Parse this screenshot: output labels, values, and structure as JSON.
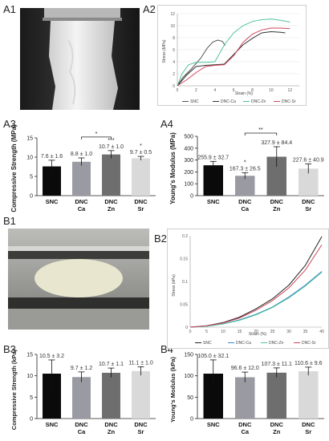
{
  "labels": {
    "a1": "A1",
    "a2": "A2",
    "a3": "A3",
    "a4": "A4",
    "b1": "B1",
    "b2": "B2",
    "b3": "B3",
    "b4": "B4"
  },
  "chart_data": [
    {
      "id": "A2",
      "type": "line",
      "xlabel": "Strain (%)",
      "ylabel": "Stress (MPa)",
      "xlim": [
        0,
        13
      ],
      "ylim": [
        0,
        12
      ],
      "xticks": [
        "0",
        "2",
        "4",
        "6",
        "8",
        "10",
        "12"
      ],
      "yticks": [
        "0",
        "2",
        "4",
        "6",
        "8",
        "10",
        "12"
      ],
      "grid": true,
      "legend": "bottom",
      "series": [
        {
          "name": "SNC",
          "color": "#555555",
          "x": [
            0,
            0.6,
            1.5,
            2.5,
            3.2,
            3.8,
            4.3,
            4.8,
            5.1
          ],
          "y": [
            0,
            1.4,
            2.8,
            4.6,
            6.3,
            7.3,
            7.6,
            7.4,
            6.7
          ]
        },
        {
          "name": "DNC-Ca",
          "color": "#333333",
          "x": [
            0,
            1,
            2,
            3,
            4,
            5,
            6,
            7,
            8,
            9,
            10,
            11,
            11.5
          ],
          "y": [
            0,
            1.8,
            3.2,
            3.4,
            3.5,
            3.6,
            5.2,
            6.8,
            7.9,
            8.8,
            9.0,
            8.9,
            8.8
          ]
        },
        {
          "name": "DNC-Zn",
          "color": "#4fc49b",
          "x": [
            0,
            0.5,
            1.2,
            2,
            3,
            4,
            5,
            6,
            7,
            8,
            9,
            10,
            11,
            12
          ],
          "y": [
            0,
            2,
            3.5,
            3.9,
            3.9,
            4,
            6.8,
            8.8,
            10,
            10.7,
            11,
            11.1,
            10.9,
            10.6
          ]
        },
        {
          "name": "DNC-Sr",
          "color": "#d0455c",
          "x": [
            0,
            1,
            2,
            3,
            4,
            5,
            6,
            7,
            8,
            9,
            10,
            11,
            12
          ],
          "y": [
            0,
            1,
            2.2,
            3.2,
            3.4,
            3.5,
            5,
            7.2,
            8.6,
            9.3,
            9.6,
            9.6,
            9.5
          ]
        }
      ]
    },
    {
      "id": "A3",
      "type": "bar",
      "ylabel": "Compressive Strength (MPa)",
      "ylim": [
        0,
        15
      ],
      "yticks": [
        "0",
        "5",
        "10",
        "15"
      ],
      "categories": [
        [
          "SNC"
        ],
        [
          "DNC",
          "Ca"
        ],
        [
          "DNC",
          "Zn"
        ],
        [
          "DNC",
          "Sr"
        ]
      ],
      "values": [
        7.6,
        8.8,
        10.7,
        9.7
      ],
      "errors": [
        1.6,
        1.0,
        1.0,
        0.5
      ],
      "value_labels": [
        "7.6 ± 1.6",
        "8.8 ± 1.0",
        "10.7 ± 1.0",
        "9.7 ± 0.5"
      ],
      "bar_colors": [
        "#0a0a0a",
        "#9a9aa3",
        "#6e6e6e",
        "#d9d9d9"
      ],
      "stars": [
        {
          "bar": 2,
          "text": "***"
        },
        {
          "bar": 3,
          "text": "*"
        }
      ],
      "brackets": [
        {
          "from": 1,
          "to": 2,
          "text": "*"
        }
      ]
    },
    {
      "id": "A4",
      "type": "bar",
      "ylabel": "Young's Modulus (MPa)",
      "ylim": [
        0,
        500
      ],
      "yticks": [
        "0",
        "100",
        "200",
        "300",
        "400",
        "500"
      ],
      "categories": [
        [
          "SNC"
        ],
        [
          "DNC",
          "Ca"
        ],
        [
          "DNC",
          "Zn"
        ],
        [
          "DNC",
          "Sr"
        ]
      ],
      "values": [
        255.9,
        167.3,
        327.9,
        227.6
      ],
      "errors": [
        32.7,
        26.5,
        84.4,
        40.9
      ],
      "value_labels": [
        "255.9 ± 32.7",
        "167.3 ± 26.5",
        "327.9 ± 84.4",
        "227.6 ± 40.9"
      ],
      "bar_colors": [
        "#0a0a0a",
        "#9a9aa3",
        "#6e6e6e",
        "#d9d9d9"
      ],
      "stars": [
        {
          "bar": 1,
          "text": "*"
        }
      ],
      "brackets": [
        {
          "from": 1,
          "to": 2,
          "text": "**"
        }
      ]
    },
    {
      "id": "B2",
      "type": "line",
      "xlabel": "Strain (%)",
      "ylabel": "Stress (kPa)",
      "xlim": [
        0,
        40
      ],
      "ylim": [
        0,
        0.2
      ],
      "xticks": [
        "0",
        "5",
        "10",
        "15",
        "20",
        "25",
        "30",
        "35",
        "40"
      ],
      "yticks": [
        "0",
        "0.05",
        "0.1",
        "0.15",
        "0.2"
      ],
      "grid": false,
      "legend": "bottom",
      "series": [
        {
          "name": "SNC",
          "color": "#222222",
          "x": [
            0,
            5,
            10,
            15,
            20,
            25,
            30,
            35,
            40
          ],
          "y": [
            0,
            0.003,
            0.01,
            0.022,
            0.04,
            0.062,
            0.092,
            0.135,
            0.198
          ]
        },
        {
          "name": "DNC-Ca",
          "color": "#3a86c9",
          "x": [
            0,
            5,
            10,
            15,
            20,
            25,
            30,
            35,
            40
          ],
          "y": [
            0,
            0.002,
            0.007,
            0.016,
            0.028,
            0.044,
            0.066,
            0.092,
            0.122
          ]
        },
        {
          "name": "DNC-Zn",
          "color": "#4fc49b",
          "x": [
            0,
            5,
            10,
            15,
            20,
            25,
            30,
            35,
            40
          ],
          "y": [
            0,
            0.002,
            0.007,
            0.015,
            0.027,
            0.043,
            0.064,
            0.09,
            0.12
          ]
        },
        {
          "name": "DNC-Sr",
          "color": "#d0455c",
          "x": [
            0,
            5,
            10,
            15,
            20,
            25,
            30,
            35,
            40
          ],
          "y": [
            0,
            0.003,
            0.009,
            0.02,
            0.037,
            0.058,
            0.086,
            0.125,
            0.18
          ]
        }
      ]
    },
    {
      "id": "B3",
      "type": "bar",
      "ylabel": "Compressive Strength (kPa)",
      "ylim": [
        0,
        15
      ],
      "yticks": [
        "0",
        "5",
        "10",
        "15"
      ],
      "categories": [
        [
          "SNC"
        ],
        [
          "DNC",
          "Ca"
        ],
        [
          "DNC",
          "Zn"
        ],
        [
          "DNC",
          "Sr"
        ]
      ],
      "values": [
        10.5,
        9.7,
        10.7,
        11.1
      ],
      "errors": [
        3.2,
        1.2,
        1.1,
        1.0
      ],
      "value_labels": [
        "10.5 ± 3.2",
        "9.7 ± 1.2",
        "10.7 ± 1.1",
        "11.1 ± 1.0"
      ],
      "bar_colors": [
        "#0a0a0a",
        "#9a9aa3",
        "#6e6e6e",
        "#d9d9d9"
      ],
      "stars": [],
      "brackets": []
    },
    {
      "id": "B4",
      "type": "bar",
      "ylabel": "Young's Modulus (kPa)",
      "ylim": [
        0,
        150
      ],
      "yticks": [
        "0",
        "50",
        "100",
        "150"
      ],
      "categories": [
        [
          "SNC"
        ],
        [
          "DNC",
          "Ca"
        ],
        [
          "DNC",
          "Zn"
        ],
        [
          "DNC",
          "Sr"
        ]
      ],
      "values": [
        105.0,
        96.6,
        107.3,
        110.6
      ],
      "errors": [
        32.1,
        12.0,
        11.1,
        9.6
      ],
      "value_labels": [
        "105.0 ± 32.1",
        "96.6 ± 12.0",
        "107.3 ± 11.1",
        "110.6 ± 9.6"
      ],
      "bar_colors": [
        "#0a0a0a",
        "#9a9aa3",
        "#6e6e6e",
        "#d9d9d9"
      ],
      "stars": [],
      "brackets": []
    }
  ]
}
